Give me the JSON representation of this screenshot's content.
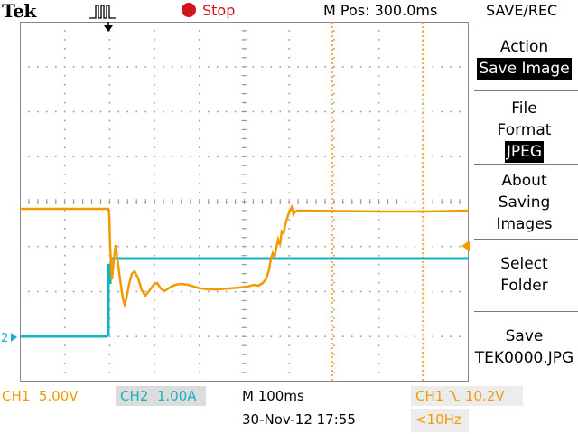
{
  "header": {
    "brand": "Tek",
    "trigger_icon": "pulse-trigger-icon",
    "status": "Stop",
    "status_icon": "stop-dot-icon",
    "mpos": "M Pos: 300.0ms",
    "menu_title": "SAVE/REC"
  },
  "menu": {
    "items": [
      {
        "label_lines": [
          "Action"
        ],
        "value": "Save Image"
      },
      {
        "label_lines": [
          "File",
          "Format"
        ],
        "value": "JPEG"
      },
      {
        "label_lines": [
          "About",
          "Saving",
          "Images"
        ]
      },
      {
        "label_lines": [
          "Select",
          "Folder"
        ]
      },
      {
        "label_lines": [
          "Save",
          "TEK0000.JPG"
        ]
      }
    ]
  },
  "footer": {
    "ch1_label": "CH1",
    "ch1_scale": "5.00V",
    "ch2_label": "CH2",
    "ch2_scale": "1.00A",
    "timebase": "M 100ms",
    "trigger": "CH1",
    "trigger_slope_icon": "falling-edge-icon",
    "trigger_level": "10.2V",
    "datetime": "30-Nov-12 17:55",
    "freq": "<10Hz"
  },
  "colors": {
    "ch1": "#f29a00",
    "ch2": "#12b4c0",
    "stop": "#d4141c"
  },
  "markers": {
    "ch2_ground": "2"
  }
}
